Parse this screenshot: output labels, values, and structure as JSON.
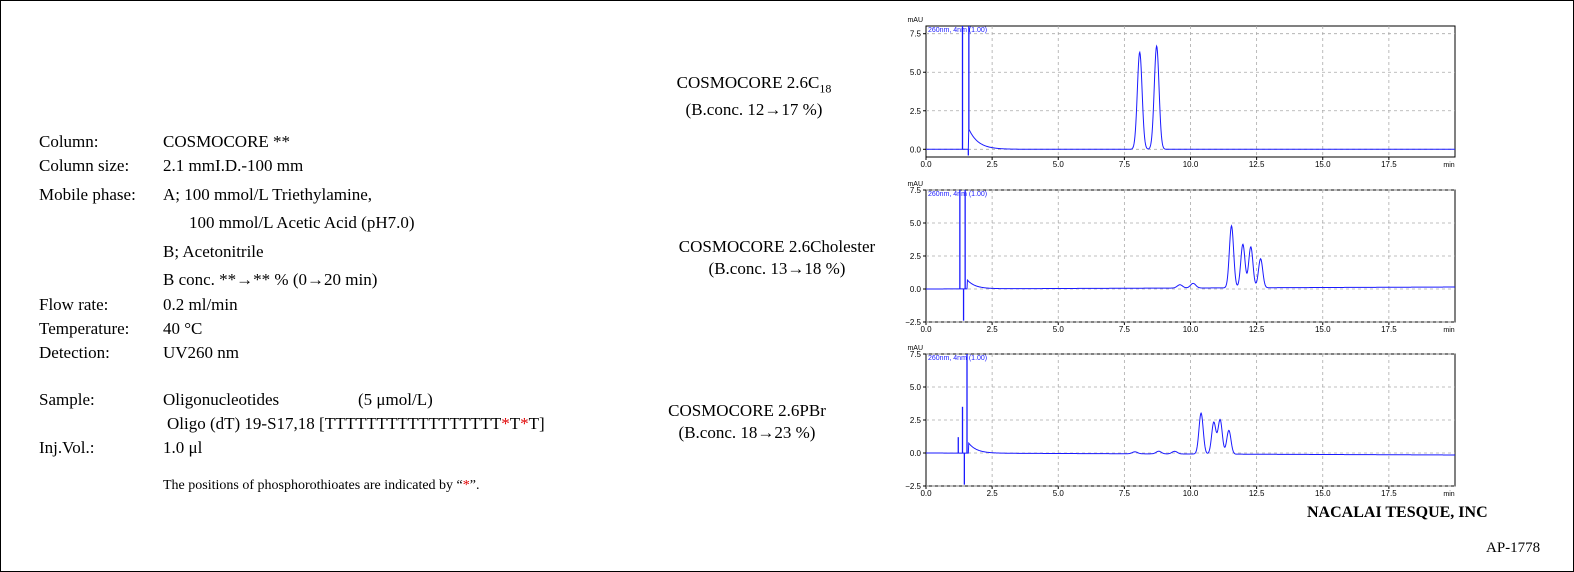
{
  "conditions": {
    "column_key": "Column:",
    "column_val": "COSMOCORE **",
    "size_key": "Column size:",
    "size_val": "2.1 mmI.D.-100 mm",
    "mobile_key": "Mobile phase:",
    "mobile_a1": "A; 100 mmol/L Triethylamine,",
    "mobile_a2": "100 mmol/L Acetic Acid (pH7.0)",
    "mobile_b": "B; Acetonitrile",
    "mobile_grad": "B conc. **→** % (0→20 min)",
    "flow_key": "Flow rate:",
    "flow_val": "0.2 ml/min",
    "temp_key": "Temperature:",
    "temp_val": "40 °C",
    "det_key": "Detection:",
    "det_val": "UV260  nm",
    "sample_key": "Sample:",
    "sample_val": "Oligonucleotides",
    "sample_conc": "(5 μmol/L)",
    "oligo_prefix": "Oligo  (dT) 19-S17,18  [TTTTTTTTTTTTTTTTT",
    "oligo_star1": "*",
    "oligo_t": "T",
    "oligo_star2": "*",
    "oligo_end": "T]",
    "inj_key": "Inj.Vol.:",
    "inj_val": "1.0 μl",
    "note_prefix": "The positions of phosphorothioates are indicated by  “",
    "note_star": "*",
    "note_suffix": "”."
  },
  "column_labels": [
    {
      "name_main": "COSMOCORE 2.6C",
      "name_sub": "18",
      "conc": "(B.conc. 12→17 %)"
    },
    {
      "name_main": "COSMOCORE 2.6Cholester",
      "name_sub": "",
      "conc": "(B.conc. 13→18 %)"
    },
    {
      "name_main": "COSMOCORE 2.6PBr",
      "name_sub": "",
      "conc": "(B.conc. 18→23 %)"
    }
  ],
  "company": "NACALAI TESQUE, INC",
  "ap_number": "AP-1778",
  "colors": {
    "trace": "#1a1aff",
    "grid": "#aaaaaa",
    "red": "#e00000"
  },
  "chart_data": [
    {
      "type": "line",
      "ylabel_unit": "mAU",
      "xlabel_unit": "min",
      "trace_label": "260nm, 4nm (1.00)",
      "xlim": [
        0,
        20
      ],
      "ylim": [
        -0.5,
        8
      ],
      "x_ticks": [
        "0.0",
        "2.5",
        "5.0",
        "7.5",
        "10.0",
        "12.5",
        "15.0",
        "17.5"
      ],
      "y_ticks": [
        {
          "v": 0,
          "label": "0.0"
        },
        {
          "v": 2.5,
          "label": "2.5"
        },
        {
          "v": 5,
          "label": "5.0"
        },
        {
          "v": 7.5,
          "label": "7.5"
        }
      ],
      "baseline": 0,
      "drift": 0.0,
      "injection": {
        "spikes": [
          {
            "x": 1.38,
            "h": 8.5
          },
          {
            "x": 1.62,
            "h": 8.5
          }
        ],
        "dip_x": 1.6,
        "dip_y": -0.4
      },
      "tail": {
        "x": 1.6,
        "h": 1.4,
        "decay": 0.35
      },
      "peaks": [
        {
          "x": 8.08,
          "h": 6.3,
          "w": 0.09
        },
        {
          "x": 8.72,
          "h": 6.7,
          "w": 0.09
        }
      ],
      "noise": []
    },
    {
      "type": "line",
      "ylabel_unit": "mAU",
      "xlabel_unit": "min",
      "trace_label": "260nm, 4nm (1.00)",
      "xlim": [
        0,
        20
      ],
      "ylim": [
        -2.5,
        7.5
      ],
      "x_ticks": [
        "0.0",
        "2.5",
        "5.0",
        "7.5",
        "10.0",
        "12.5",
        "15.0",
        "17.5"
      ],
      "y_ticks": [
        {
          "v": -2.5,
          "label": "−2.5"
        },
        {
          "v": 0,
          "label": "0.0"
        },
        {
          "v": 2.5,
          "label": "2.5"
        },
        {
          "v": 5,
          "label": "5.0"
        },
        {
          "v": 7.5,
          "label": "7.5"
        }
      ],
      "baseline": 0,
      "drift": 0.15,
      "injection": {
        "spikes": [
          {
            "x": 1.28,
            "h": 8
          },
          {
            "x": 1.48,
            "h": 8
          }
        ],
        "dip_x": 1.42,
        "dip_y": -2.4
      },
      "tail": {
        "x": 1.55,
        "h": 0.7,
        "decay": 0.3
      },
      "peaks": [
        {
          "x": 11.55,
          "h": 4.7,
          "w": 0.08
        },
        {
          "x": 11.98,
          "h": 3.3,
          "w": 0.08
        },
        {
          "x": 12.28,
          "h": 3.1,
          "w": 0.08
        },
        {
          "x": 12.65,
          "h": 2.2,
          "w": 0.08
        }
      ],
      "noise": [
        {
          "x": 9.6,
          "h": 0.25,
          "w": 0.1
        },
        {
          "x": 10.1,
          "h": 0.35,
          "w": 0.1
        }
      ]
    },
    {
      "type": "line",
      "ylabel_unit": "mAU",
      "xlabel_unit": "min",
      "trace_label": "260nm, 4nm (1.00)",
      "xlim": [
        0,
        20
      ],
      "ylim": [
        -2.5,
        7.5
      ],
      "x_ticks": [
        "0.0",
        "2.5",
        "5.0",
        "7.5",
        "10.0",
        "12.5",
        "15.0",
        "17.5"
      ],
      "y_ticks": [
        {
          "v": -2.5,
          "label": "−2.5"
        },
        {
          "v": 0,
          "label": "0.0"
        },
        {
          "v": 2.5,
          "label": "2.5"
        },
        {
          "v": 5,
          "label": "5.0"
        },
        {
          "v": 7.5,
          "label": "7.5"
        }
      ],
      "baseline": 0,
      "drift": -0.15,
      "injection": {
        "spikes": [
          {
            "x": 1.22,
            "h": 1.2
          },
          {
            "x": 1.38,
            "h": 3.5
          },
          {
            "x": 1.55,
            "h": 8
          }
        ],
        "dip_x": 1.45,
        "dip_y": -2.4
      },
      "tail": {
        "x": 1.6,
        "h": 0.8,
        "decay": 0.3
      },
      "peaks": [
        {
          "x": 10.4,
          "h": 3.1,
          "w": 0.08
        },
        {
          "x": 10.88,
          "h": 2.4,
          "w": 0.08
        },
        {
          "x": 11.12,
          "h": 2.6,
          "w": 0.08
        },
        {
          "x": 11.45,
          "h": 1.8,
          "w": 0.08
        }
      ],
      "noise": [
        {
          "x": 7.9,
          "h": 0.15,
          "w": 0.1
        },
        {
          "x": 8.8,
          "h": 0.2,
          "w": 0.1
        },
        {
          "x": 9.4,
          "h": 0.2,
          "w": 0.1
        }
      ]
    }
  ]
}
